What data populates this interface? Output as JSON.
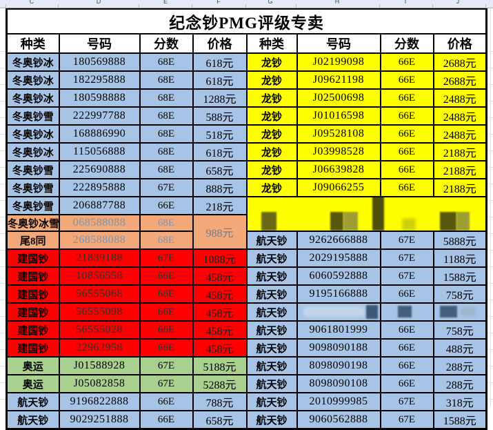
{
  "title": "纪念钞PMG评级专卖",
  "column_letters": [
    "C",
    "D",
    "E",
    "F",
    "G",
    "H",
    "I",
    "J"
  ],
  "table_headers": [
    "种类",
    "号码",
    "分数",
    "价格"
  ],
  "colors": {
    "blue": "#a7c4e6",
    "yellow": "#ffff00",
    "red": "#ff0000",
    "green": "#a9d08e",
    "orange": "#f2a878",
    "orange_text": "#7e93b0",
    "orange_price_text": "#6f7d8b",
    "red_number_text": "#303030",
    "red_price_text": "#1c1c1c"
  },
  "rows": [
    {
      "left": {
        "type": "冬奥钞冰",
        "number": "180569888",
        "score": "68E",
        "price": "618元",
        "color": "blue"
      },
      "right": {
        "type": "龙钞",
        "number": "J02199098",
        "score": "66E",
        "price": "2688元",
        "color": "yellow"
      }
    },
    {
      "left": {
        "type": "冬奥钞冰",
        "number": "182295888",
        "score": "68E",
        "price": "618元",
        "color": "blue"
      },
      "right": {
        "type": "龙钞",
        "number": "J09621198",
        "score": "66E",
        "price": "2688元",
        "color": "yellow"
      }
    },
    {
      "left": {
        "type": "冬奥钞冰",
        "number": "180598888",
        "score": "68E",
        "price": "1288元",
        "color": "blue"
      },
      "right": {
        "type": "龙钞",
        "number": "J02500698",
        "score": "66E",
        "price": "2488元",
        "color": "yellow"
      }
    },
    {
      "left": {
        "type": "冬奥钞雪",
        "number": "222997788",
        "score": "68E",
        "price": "588元",
        "color": "blue"
      },
      "right": {
        "type": "龙钞",
        "number": "J01016598",
        "score": "66E",
        "price": "2488元",
        "color": "yellow"
      }
    },
    {
      "left": {
        "type": "冬奥钞冰",
        "number": "168886990",
        "score": "68E",
        "price": "518元",
        "color": "blue"
      },
      "right": {
        "type": "龙钞",
        "number": "J09528108",
        "score": "66E",
        "price": "2488元",
        "color": "yellow"
      }
    },
    {
      "left": {
        "type": "冬奥钞冰",
        "number": "115056888",
        "score": "68E",
        "price": "618元",
        "color": "blue"
      },
      "right": {
        "type": "龙钞",
        "number": "J03998528",
        "score": "66E",
        "price": "2188元",
        "color": "yellow"
      }
    },
    {
      "left": {
        "type": "冬奥钞雪",
        "number": "225690888",
        "score": "68E",
        "price": "658元",
        "color": "blue"
      },
      "right": {
        "type": "龙钞",
        "number": "J06639828",
        "score": "66E",
        "price": "2188元",
        "color": "yellow"
      }
    },
    {
      "left": {
        "type": "冬奥钞雪",
        "number": "222895888",
        "score": "67E",
        "price": "888元",
        "color": "blue"
      },
      "right": {
        "type": "龙钞",
        "number": "J09066255",
        "score": "66E",
        "price": "2188元",
        "color": "yellow"
      }
    },
    {
      "left": {
        "type": "冬奥钞雪",
        "number": "206887788",
        "score": "66E",
        "price": "218元",
        "color": "blue"
      },
      "right": {
        "band": "start",
        "color": "yellow"
      }
    },
    {
      "left": {
        "type": "冬奥钞冰雪",
        "number": "068588088",
        "score": "68E",
        "price": "988元",
        "color": "orange",
        "merge_price": "start"
      },
      "right": {
        "band": "cont"
      }
    },
    {
      "left": {
        "type": "尾8同",
        "number": "268588088",
        "score": "68E",
        "color": "orange",
        "merge_price": "cont"
      },
      "right": {
        "type": "航天钞",
        "number": "9262666888",
        "score": "67E",
        "price": "5888元",
        "color": "blue"
      }
    },
    {
      "left": {
        "type": "建国钞",
        "number": "21839188",
        "score": "67E",
        "price": "1088元",
        "color": "red"
      },
      "right": {
        "type": "航天钞",
        "number": "2029195888",
        "score": "67E",
        "price": "1188元",
        "color": "blue"
      }
    },
    {
      "left": {
        "type": "建国钞",
        "number": "10856558",
        "score": "66E",
        "price": "458元",
        "color": "red"
      },
      "right": {
        "type": "航天钞",
        "number": "6060592888",
        "score": "67E",
        "price": "1588元",
        "color": "blue"
      }
    },
    {
      "left": {
        "type": "建国钞",
        "number": "56555068",
        "score": "66E",
        "price": "458元",
        "color": "red"
      },
      "right": {
        "type": "航天钞",
        "number": "9195166888",
        "score": "66E",
        "price": "758元",
        "color": "blue"
      }
    },
    {
      "left": {
        "type": "建国钞",
        "number": "56555098",
        "score": "66E",
        "price": "458元",
        "color": "red"
      },
      "right": {
        "type": "航天钞",
        "number": "",
        "score": "",
        "price": "",
        "color": "blue",
        "censored": true
      }
    },
    {
      "left": {
        "type": "建国钞",
        "number": "56555028",
        "score": "66E",
        "price": "458元",
        "color": "red"
      },
      "right": {
        "type": "航天钞",
        "number": "9061801999",
        "score": "66E",
        "price": "758元",
        "color": "blue"
      }
    },
    {
      "left": {
        "type": "建国钞",
        "number": "22962958",
        "score": "66E",
        "price": "458元",
        "color": "red"
      },
      "right": {
        "type": "航天钞",
        "number": "9098090188",
        "score": "66E",
        "price": "488元",
        "color": "blue"
      }
    },
    {
      "left": {
        "type": "奥运",
        "number": "J01588928",
        "score": "67E",
        "price": "5188元",
        "color": "green"
      },
      "right": {
        "type": "航天钞",
        "number": "8098090198",
        "score": "66E",
        "price": "288元",
        "color": "blue"
      }
    },
    {
      "left": {
        "type": "奥运",
        "number": "J05082858",
        "score": "67E",
        "price": "5288元",
        "color": "green"
      },
      "right": {
        "type": "航天钞",
        "number": "8098090108",
        "score": "66E",
        "price": "288元",
        "color": "blue"
      }
    },
    {
      "left": {
        "type": "航天钞",
        "number": "9196822888",
        "score": "66E",
        "price": "788元",
        "color": "blue"
      },
      "right": {
        "type": "航天钞",
        "number": "2010999985",
        "score": "67E",
        "price": "318元",
        "color": "blue"
      }
    },
    {
      "left": {
        "type": "航天钞",
        "number": "9029251888",
        "score": "66E",
        "price": "658元",
        "color": "blue"
      },
      "right": {
        "type": "航天钞",
        "number": "9060562888",
        "score": "67E",
        "price": "1588元",
        "color": "blue"
      }
    }
  ]
}
